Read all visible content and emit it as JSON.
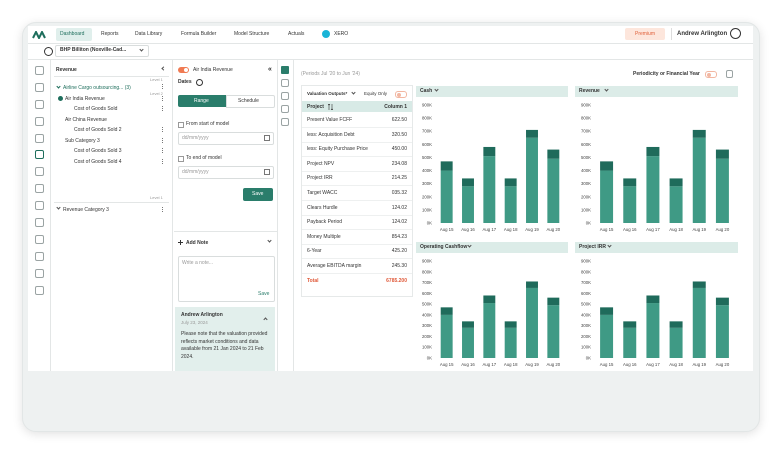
{
  "nav": {
    "items": [
      "Dashboard",
      "Reports",
      "Data Library",
      "Formula Builder",
      "Model Structure",
      "Actuals",
      "XERO"
    ],
    "premium": "Premium",
    "user": "Andrew Arlington"
  },
  "company": "BHP Billiton (Noxville-Cad...",
  "tree": {
    "title": "Revenue",
    "level_top": "Level 1",
    "group": "Airline Cargo outsourcing... (3)",
    "level_group": "Level 2",
    "items": [
      "Air India Revenue",
      "Cost of Goods Sold",
      "Air China Revenue",
      "Cost of Goods Sold 2",
      "Sub Category 3",
      "Cost of Goods Sold 3",
      "Cost of Goods Sold 4"
    ],
    "level_bottom": "Level 1",
    "category": "Revenue Category 3"
  },
  "dates": {
    "toggle_label": "Air India Revenue",
    "title": "Dates",
    "tabs": [
      "Range",
      "Schedule"
    ],
    "from": "From start of model",
    "to": "To end of model",
    "placeholder": "dd/mm/yyyy",
    "save": "Save"
  },
  "note": {
    "add": "Add Note",
    "placeholder": "Write a note...",
    "save": "Save",
    "author": "Andrew Arlington",
    "date": "July 23, 2024",
    "text": "Please note that the valuation provided reflects market conditions and data available from 21 Jan 2024 to 21 Feb 2024."
  },
  "main": {
    "period": "(Periods Jul '20 to Jun '24)",
    "periodicity": "Periodicity or Financial Year"
  },
  "table": {
    "title": "Valuation Outputs*",
    "equity": "Equity Only",
    "header": [
      "Project",
      "Column 1"
    ],
    "rows": [
      [
        "Present Value FCFF",
        "622.50"
      ],
      [
        "less: Acquisition Debt",
        "320.50"
      ],
      [
        "less: Equity Purchase Price",
        "450.00"
      ],
      [
        "Project NPV",
        "234.08"
      ],
      [
        "Project IRR",
        "214.25"
      ],
      [
        "Target WACC",
        "035.32"
      ],
      [
        "Clears Hurdle",
        "124.02"
      ],
      [
        "Payback Period",
        "124.02"
      ],
      [
        "Money Multiple",
        "854.23"
      ],
      [
        "6-Year",
        "425.20"
      ],
      [
        "Average EBITDA margin",
        "245.30"
      ]
    ],
    "total": [
      "Total",
      "6785.200"
    ]
  },
  "chart_data": [
    {
      "type": "bar",
      "stacked": true,
      "title": "Cash",
      "categories": [
        "Aug 15",
        "Aug 16",
        "Aug 17",
        "Aug 18",
        "Aug 19",
        "Aug 20"
      ],
      "series": [
        {
          "color": "#3f9a85",
          "values": [
            400,
            280,
            510,
            280,
            650,
            490
          ]
        },
        {
          "color": "#1f6b5b",
          "values": [
            70,
            60,
            70,
            60,
            60,
            70
          ]
        }
      ],
      "ylim": [
        0,
        900
      ],
      "yticks": [
        {
          "value": 0,
          "label": "0K"
        },
        {
          "value": 100,
          "label": "100K"
        },
        {
          "value": 200,
          "label": "200K"
        },
        {
          "value": 300,
          "label": "300K"
        },
        {
          "value": 400,
          "label": "400K"
        },
        {
          "value": 500,
          "label": "500K"
        },
        {
          "value": 600,
          "label": "600K"
        },
        {
          "value": 700,
          "label": "700K"
        },
        {
          "value": 800,
          "label": "800K"
        },
        {
          "value": 900,
          "label": "900K"
        }
      ]
    },
    {
      "type": "bar",
      "stacked": true,
      "title": "Revenue",
      "categories": [
        "Aug 15",
        "Aug 16",
        "Aug 17",
        "Aug 18",
        "Aug 19",
        "Aug 20"
      ],
      "series": [
        {
          "color": "#3f9a85",
          "values": [
            400,
            280,
            510,
            280,
            650,
            490
          ]
        },
        {
          "color": "#1f6b5b",
          "values": [
            70,
            60,
            70,
            60,
            60,
            70
          ]
        }
      ],
      "ylim": [
        0,
        900
      ],
      "yticks": [
        {
          "value": 0,
          "label": "0K"
        },
        {
          "value": 100,
          "label": "100K"
        },
        {
          "value": 200,
          "label": "200K"
        },
        {
          "value": 300,
          "label": "300K"
        },
        {
          "value": 400,
          "label": "400K"
        },
        {
          "value": 500,
          "label": "500K"
        },
        {
          "value": 600,
          "label": "600K"
        },
        {
          "value": 700,
          "label": "700K"
        },
        {
          "value": 800,
          "label": "800K"
        },
        {
          "value": 900,
          "label": "900K"
        }
      ]
    },
    {
      "type": "bar",
      "stacked": true,
      "title": "Operating Cashflow",
      "categories": [
        "Aug 15",
        "Aug 16",
        "Aug 17",
        "Aug 18",
        "Aug 19",
        "Aug 20"
      ],
      "series": [
        {
          "color": "#3f9a85",
          "values": [
            400,
            280,
            510,
            280,
            650,
            490
          ]
        },
        {
          "color": "#1f6b5b",
          "values": [
            70,
            60,
            70,
            60,
            60,
            70
          ]
        }
      ],
      "ylim": [
        0,
        900
      ],
      "yticks": [
        {
          "value": 0,
          "label": "0K"
        },
        {
          "value": 100,
          "label": "100K"
        },
        {
          "value": 200,
          "label": "200K"
        },
        {
          "value": 300,
          "label": "300K"
        },
        {
          "value": 400,
          "label": "400K"
        },
        {
          "value": 500,
          "label": "500K"
        },
        {
          "value": 600,
          "label": "600K"
        },
        {
          "value": 700,
          "label": "700K"
        },
        {
          "value": 800,
          "label": "800K"
        },
        {
          "value": 900,
          "label": "900K"
        }
      ]
    },
    {
      "type": "bar",
      "stacked": true,
      "title": "Project IRR",
      "categories": [
        "Aug 15",
        "Aug 16",
        "Aug 17",
        "Aug 18",
        "Aug 19",
        "Aug 20"
      ],
      "series": [
        {
          "color": "#3f9a85",
          "values": [
            400,
            280,
            510,
            280,
            650,
            490
          ]
        },
        {
          "color": "#1f6b5b",
          "values": [
            70,
            60,
            70,
            60,
            60,
            70
          ]
        }
      ],
      "ylim": [
        0,
        900
      ],
      "yticks": [
        {
          "value": 0,
          "label": "0K"
        },
        {
          "value": 100,
          "label": "100K"
        },
        {
          "value": 200,
          "label": "200K"
        },
        {
          "value": 300,
          "label": "300K"
        },
        {
          "value": 400,
          "label": "400K"
        },
        {
          "value": 500,
          "label": "500K"
        },
        {
          "value": 600,
          "label": "600K"
        },
        {
          "value": 700,
          "label": "700K"
        },
        {
          "value": 800,
          "label": "800K"
        },
        {
          "value": 900,
          "label": "900K"
        }
      ]
    }
  ]
}
